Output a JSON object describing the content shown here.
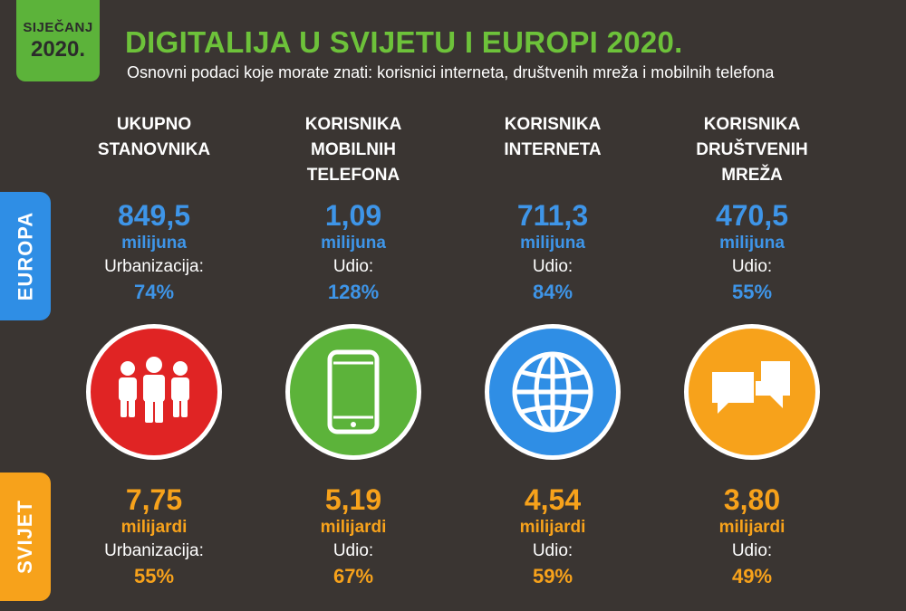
{
  "header": {
    "date_month": "SIJEČANJ",
    "date_year": "2020.",
    "title": "DIGITALIJA U SVIJETU I EUROPI 2020.",
    "subtitle": "Osnovni podaci koje morate znati: korisnici interneta, društvenih mreža i mobilnih telefona"
  },
  "side_tabs": {
    "europe": "EUROPA",
    "world": "SVIJET"
  },
  "colors": {
    "background": "#3a3532",
    "green": "#5cb33a",
    "blue": "#2f8ee5",
    "orange": "#f7a21b",
    "red": "#e02424"
  },
  "columns": [
    {
      "header": [
        "UKUPNO",
        "STANOVNIKA"
      ],
      "icon": "people-icon",
      "icon_color": "#e02424",
      "europe": {
        "value": "849,5",
        "unit": "milijuna",
        "label": "Urbanizacija:",
        "pct": "74%"
      },
      "world": {
        "value": "7,75",
        "unit": "milijardi",
        "label": "Urbanizacija:",
        "pct": "55%"
      }
    },
    {
      "header": [
        "KORISNIKA",
        "MOBILNIH",
        "TELEFONA"
      ],
      "icon": "mobile-phone-icon",
      "icon_color": "#5cb33a",
      "europe": {
        "value": "1,09",
        "unit": "milijuna",
        "label": "Udio:",
        "pct": "128%"
      },
      "world": {
        "value": "5,19",
        "unit": "milijardi",
        "label": "Udio:",
        "pct": "67%"
      }
    },
    {
      "header": [
        "KORISNIKA",
        "INTERNETA"
      ],
      "icon": "globe-icon",
      "icon_color": "#2f8ee5",
      "europe": {
        "value": "711,3",
        "unit": "milijuna",
        "label": "Udio:",
        "pct": "84%"
      },
      "world": {
        "value": "4,54",
        "unit": "milijardi",
        "label": "Udio:",
        "pct": "59%"
      }
    },
    {
      "header": [
        "KORISNIKA",
        "DRUŠTVENIH",
        "MREŽA"
      ],
      "icon": "chat-bubbles-icon",
      "icon_color": "#f7a21b",
      "europe": {
        "value": "470,5",
        "unit": "milijuna",
        "label": "Udio:",
        "pct": "55%"
      },
      "world": {
        "value": "3,80",
        "unit": "milijardi",
        "label": "Udio:",
        "pct": "49%"
      }
    }
  ]
}
